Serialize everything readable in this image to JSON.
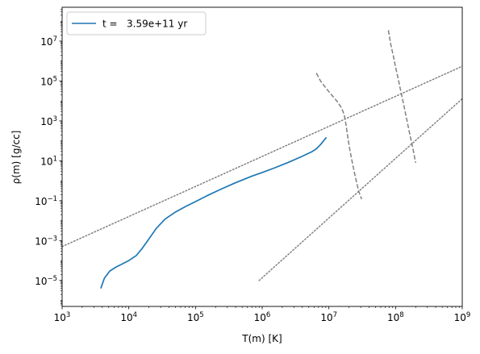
{
  "chart_data": {
    "type": "line",
    "xlabel": "T(m) [K]",
    "ylabel": "ρ(m) [g/cc]",
    "xscale": "log",
    "yscale": "log",
    "xlim": [
      1000,
      1000000000
    ],
    "ylim": [
      5e-07,
      500000000
    ],
    "grid": false,
    "legend_position": "upper-left",
    "x_ticks": [
      {
        "value": 1000,
        "base": "10",
        "exp": "3"
      },
      {
        "value": 10000,
        "base": "10",
        "exp": "4"
      },
      {
        "value": 100000,
        "base": "10",
        "exp": "5"
      },
      {
        "value": 1000000,
        "base": "10",
        "exp": "6"
      },
      {
        "value": 10000000,
        "base": "10",
        "exp": "7"
      },
      {
        "value": 100000000,
        "base": "10",
        "exp": "8"
      },
      {
        "value": 1000000000,
        "base": "10",
        "exp": "9"
      }
    ],
    "y_ticks": [
      {
        "value": 1e-05,
        "base": "10",
        "exp": "−5"
      },
      {
        "value": 0.001,
        "base": "10",
        "exp": "−3"
      },
      {
        "value": 0.1,
        "base": "10",
        "exp": "−1"
      },
      {
        "value": 10,
        "base": "10",
        "exp": "1"
      },
      {
        "value": 1000,
        "base": "10",
        "exp": "3"
      },
      {
        "value": 100000,
        "base": "10",
        "exp": "5"
      },
      {
        "value": 10000000,
        "base": "10",
        "exp": "7"
      }
    ],
    "series": [
      {
        "name": "t =   3.59e+11 yr",
        "style": "solid",
        "color": "#1f77b4",
        "x": [
          3800,
          4300,
          5200,
          6500,
          8000,
          10000,
          13000,
          16000,
          20000,
          26000,
          35000,
          50000,
          70000,
          100000,
          150000,
          250000,
          400000,
          700000,
          1000000,
          1500000,
          2500000,
          4000000,
          5500000,
          6500000,
          7500000,
          8500000,
          9200000
        ],
        "y": [
          4e-06,
          1.3e-05,
          3e-05,
          4.8e-05,
          6.8e-05,
          0.0001,
          0.00018,
          0.00042,
          0.0012,
          0.0042,
          0.012,
          0.027,
          0.05,
          0.09,
          0.18,
          0.4,
          0.8,
          1.7,
          2.6,
          4.3,
          8.5,
          17,
          28,
          40,
          65,
          110,
          150
        ]
      },
      {
        "name": "",
        "style": "dotted",
        "color": "#808080",
        "x": [
          1000,
          1000000000
        ],
        "y": [
          0.0005,
          550000
        ]
      },
      {
        "name": "",
        "style": "dotted",
        "color": "#808080",
        "x": [
          900000,
          1000000000
        ],
        "y": [
          1e-05,
          13000
        ]
      },
      {
        "name": "",
        "style": "dashed",
        "color": "#808080",
        "x": [
          6500000,
          7500000,
          9000000,
          11000000,
          13500000,
          15500000,
          17000000,
          18000000,
          19000000,
          20500000,
          22500000,
          25000000,
          28000000,
          31000000
        ],
        "y": [
          250000,
          100000,
          45000,
          20000,
          9000,
          4500,
          2000,
          700,
          200,
          40,
          8,
          1.5,
          0.3,
          0.12
        ]
      },
      {
        "name": "",
        "style": "dashed",
        "color": "#808080",
        "x": [
          78000000,
          84000000,
          92000000,
          100000000,
          110000000,
          120000000,
          132000000,
          145000000,
          160000000,
          180000000,
          200000000
        ],
        "y": [
          35000000,
          8000000,
          2000000,
          500000,
          120000,
          30000,
          7000,
          1500,
          300,
          50,
          8
        ]
      }
    ]
  }
}
